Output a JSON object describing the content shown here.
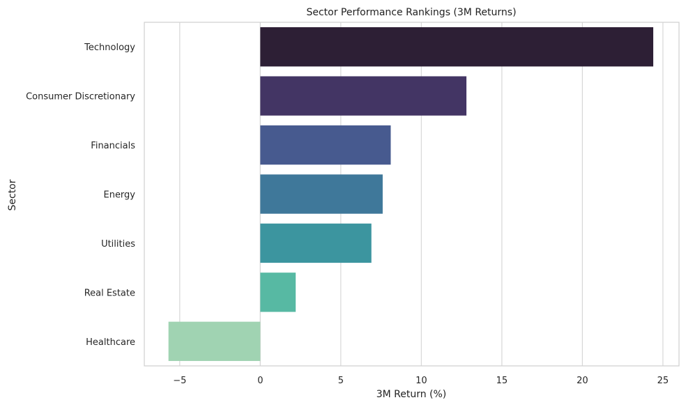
{
  "chart_data": {
    "type": "bar",
    "orientation": "horizontal",
    "title": "Sector Performance Rankings (3M Returns)",
    "xlabel": "3M Return (%)",
    "ylabel": "Sector",
    "categories": [
      "Technology",
      "Consumer Discretionary",
      "Financials",
      "Energy",
      "Utilities",
      "Real Estate",
      "Healthcare"
    ],
    "values": [
      24.4,
      12.8,
      8.1,
      7.6,
      6.9,
      2.2,
      -5.7
    ],
    "colors": [
      "#2d1f35",
      "#433564",
      "#475a8f",
      "#3f789a",
      "#3c959f",
      "#57b9a3",
      "#a0d3b2"
    ],
    "xlim": [
      -7.2,
      26.0
    ],
    "xticks": [
      -5,
      0,
      5,
      10,
      15,
      20,
      25
    ],
    "xtick_labels": [
      "−5",
      "0",
      "5",
      "10",
      "15",
      "20",
      "25"
    ],
    "grid": "x",
    "legend": "none"
  }
}
